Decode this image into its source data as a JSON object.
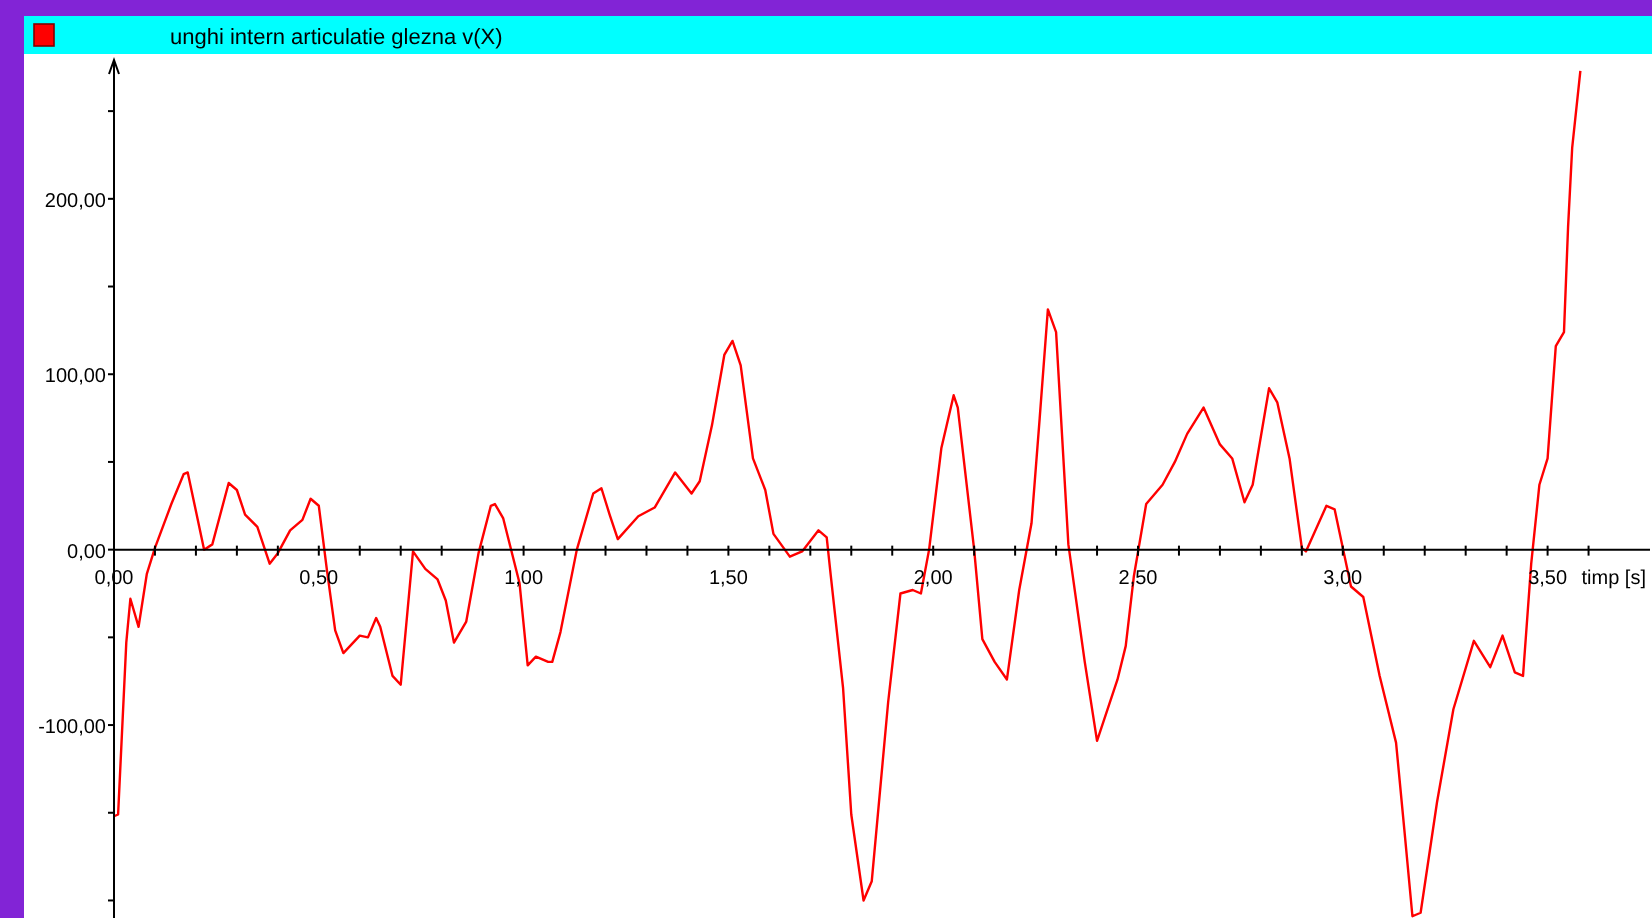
{
  "chart_data": {
    "type": "line",
    "xlabel": "timp [s]",
    "legend": "top left",
    "grid": false,
    "xlim": [
      0,
      3.75
    ],
    "ylim": [
      -210,
      278
    ],
    "xticks": [
      {
        "value": 0,
        "label": "0,00"
      },
      {
        "value": 0.1,
        "label": null
      },
      {
        "value": 0.2,
        "label": null
      },
      {
        "value": 0.3,
        "label": null
      },
      {
        "value": 0.4,
        "label": null
      },
      {
        "value": 0.5,
        "label": "0,50"
      },
      {
        "value": 0.6,
        "label": null
      },
      {
        "value": 0.7,
        "label": null
      },
      {
        "value": 0.8,
        "label": null
      },
      {
        "value": 0.9,
        "label": null
      },
      {
        "value": 1,
        "label": "1,00"
      },
      {
        "value": 1.1,
        "label": null
      },
      {
        "value": 1.2,
        "label": null
      },
      {
        "value": 1.3,
        "label": null
      },
      {
        "value": 1.4,
        "label": null
      },
      {
        "value": 1.5,
        "label": "1,50"
      },
      {
        "value": 1.6,
        "label": null
      },
      {
        "value": 1.7,
        "label": null
      },
      {
        "value": 1.8,
        "label": null
      },
      {
        "value": 1.9,
        "label": null
      },
      {
        "value": 2,
        "label": "2,00"
      },
      {
        "value": 2.1,
        "label": null
      },
      {
        "value": 2.2,
        "label": null
      },
      {
        "value": 2.3,
        "label": null
      },
      {
        "value": 2.4,
        "label": null
      },
      {
        "value": 2.5,
        "label": "2,50"
      },
      {
        "value": 2.6,
        "label": null
      },
      {
        "value": 2.7,
        "label": null
      },
      {
        "value": 2.8,
        "label": null
      },
      {
        "value": 2.9,
        "label": null
      },
      {
        "value": 3,
        "label": "3,00"
      },
      {
        "value": 3.1,
        "label": null
      },
      {
        "value": 3.2,
        "label": null
      },
      {
        "value": 3.3,
        "label": null
      },
      {
        "value": 3.4,
        "label": null
      },
      {
        "value": 3.5,
        "label": "3,50"
      },
      {
        "value": 3.6,
        "label": null
      }
    ],
    "yticks": [
      {
        "value": -200,
        "label": null
      },
      {
        "value": -150,
        "label": null
      },
      {
        "value": -100,
        "label": "-100,00"
      },
      {
        "value": -50,
        "label": null
      },
      {
        "value": 0,
        "label": "0,00"
      },
      {
        "value": 50,
        "label": null
      },
      {
        "value": 100,
        "label": "100,00"
      },
      {
        "value": 150,
        "label": null
      },
      {
        "value": 200,
        "label": "200,00"
      },
      {
        "value": 250,
        "label": null
      }
    ],
    "series": [
      {
        "name": "unghi intern articulatie glezna  v(X)",
        "color": "#ff0000",
        "x": [
          0,
          0.01,
          0.02,
          0.03,
          0.04,
          0.06,
          0.08,
          0.1,
          0.14,
          0.17,
          0.18,
          0.22,
          0.24,
          0.28,
          0.3,
          0.32,
          0.35,
          0.38,
          0.4,
          0.43,
          0.46,
          0.48,
          0.5,
          0.52,
          0.54,
          0.56,
          0.6,
          0.62,
          0.64,
          0.65,
          0.68,
          0.7,
          0.73,
          0.76,
          0.79,
          0.81,
          0.83,
          0.86,
          0.89,
          0.92,
          0.93,
          0.95,
          0.99,
          1.01,
          1.03,
          1.06,
          1.07,
          1.09,
          1.13,
          1.17,
          1.19,
          1.21,
          1.23,
          1.28,
          1.32,
          1.37,
          1.41,
          1.43,
          1.46,
          1.49,
          1.51,
          1.53,
          1.56,
          1.59,
          1.61,
          1.65,
          1.68,
          1.72,
          1.74,
          1.75,
          1.78,
          1.8,
          1.83,
          1.85,
          1.89,
          1.92,
          1.95,
          1.97,
          1.99,
          2.02,
          2.05,
          2.06,
          2.1,
          2.12,
          2.15,
          2.18,
          2.21,
          2.24,
          2.26,
          2.28,
          2.3,
          2.33,
          2.37,
          2.4,
          2.45,
          2.47,
          2.49,
          2.52,
          2.56,
          2.59,
          2.62,
          2.66,
          2.7,
          2.73,
          2.76,
          2.78,
          2.82,
          2.84,
          2.87,
          2.9,
          2.91,
          2.96,
          2.98,
          3.02,
          3.05,
          3.09,
          3.13,
          3.15,
          3.17,
          3.19,
          3.23,
          3.27,
          3.32,
          3.36,
          3.39,
          3.42,
          3.44,
          3.46,
          3.48,
          3.5,
          3.52,
          3.54,
          3.55,
          3.56,
          3.58
        ],
        "values": [
          -152,
          -151,
          -102,
          -53,
          -28,
          -44,
          -14,
          1,
          26,
          43,
          44,
          0,
          3,
          38,
          34,
          20,
          13,
          -8,
          -2,
          11,
          17,
          29,
          25,
          -12,
          -46,
          -59,
          -49,
          -50,
          -39,
          -44,
          -72,
          -77,
          -1,
          -11,
          -17,
          -29,
          -53,
          -41,
          -2,
          25,
          26,
          18,
          -19,
          -66,
          -61,
          -64,
          -64,
          -47,
          0,
          32,
          35,
          20,
          6,
          19,
          24,
          44,
          32,
          39,
          71,
          111,
          119,
          105,
          52,
          34,
          9,
          -4,
          -1,
          11,
          7,
          -15,
          -79,
          -151,
          -200,
          -189,
          -87,
          -25,
          -23,
          -25,
          0,
          58,
          88,
          81,
          0,
          -51,
          -64,
          -74,
          -23,
          15,
          75,
          137,
          124,
          3,
          -64,
          -109,
          -74,
          -55,
          -15,
          26,
          37,
          50,
          66,
          81,
          60,
          52,
          27,
          37,
          92,
          84,
          52,
          1,
          -1,
          25,
          23,
          -21,
          -27,
          -72,
          -110,
          -159,
          -209,
          -207,
          -144,
          -91,
          -52,
          -67,
          -49,
          -70,
          -72,
          -8,
          37,
          52,
          116,
          124,
          184,
          229,
          273
        ]
      }
    ]
  }
}
